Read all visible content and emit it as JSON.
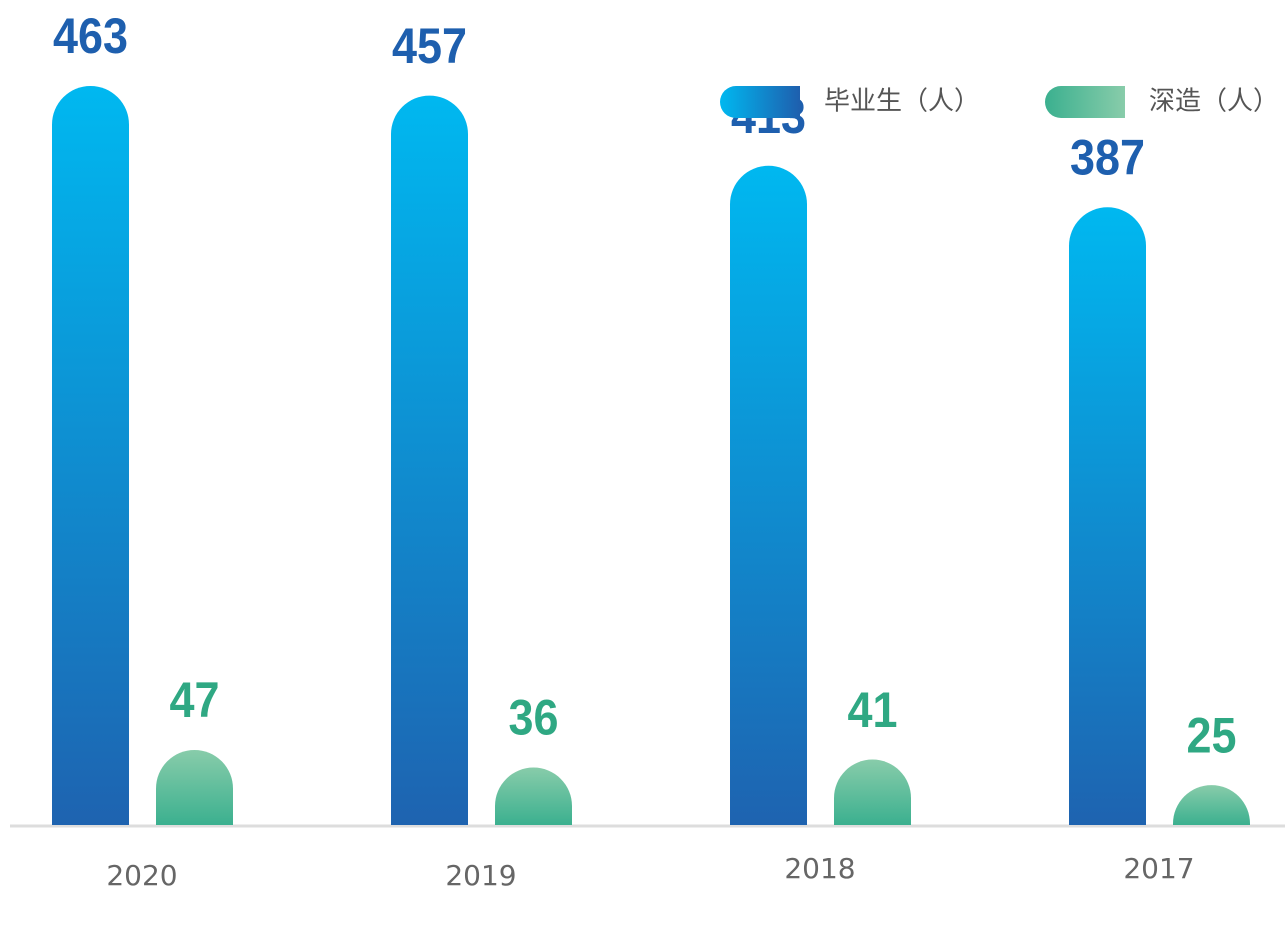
{
  "chart_data": {
    "type": "bar",
    "categories": [
      "2020",
      "2019",
      "2018",
      "2017"
    ],
    "series": [
      {
        "name": "毕业生（人）",
        "color": "#1e63b0",
        "values": [
          463,
          457,
          413,
          387
        ]
      },
      {
        "name": "深造（人）",
        "color": "#3bb08f",
        "values": [
          47,
          36,
          41,
          25
        ]
      }
    ],
    "legend": "top-right"
  }
}
